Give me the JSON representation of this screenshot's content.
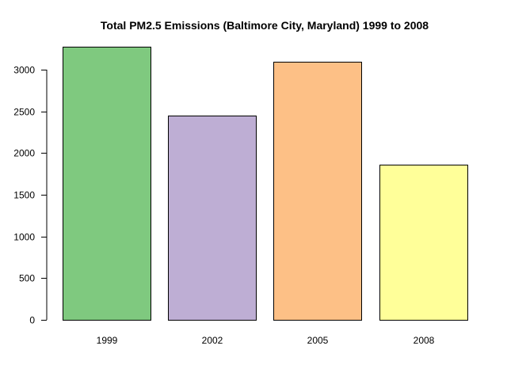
{
  "chart_data": {
    "type": "bar",
    "title": "Total PM2.5 Emissions (Baltimore City, Maryland) 1999 to 2008",
    "xlabel": "",
    "ylabel": "",
    "categories": [
      "1999",
      "2002",
      "2005",
      "2008"
    ],
    "values": [
      3274,
      2453,
      3091,
      1862
    ],
    "colors": [
      "#7fc97f",
      "#beaed4",
      "#fdc086",
      "#ffff99"
    ],
    "ylim": [
      0,
      3300
    ],
    "yticks": [
      0,
      500,
      1000,
      1500,
      2000,
      2500,
      3000
    ],
    "ytick_labels": [
      "0",
      "500",
      "1000",
      "1500",
      "2000",
      "2500",
      "3000"
    ],
    "grid": false,
    "legend": "none"
  }
}
